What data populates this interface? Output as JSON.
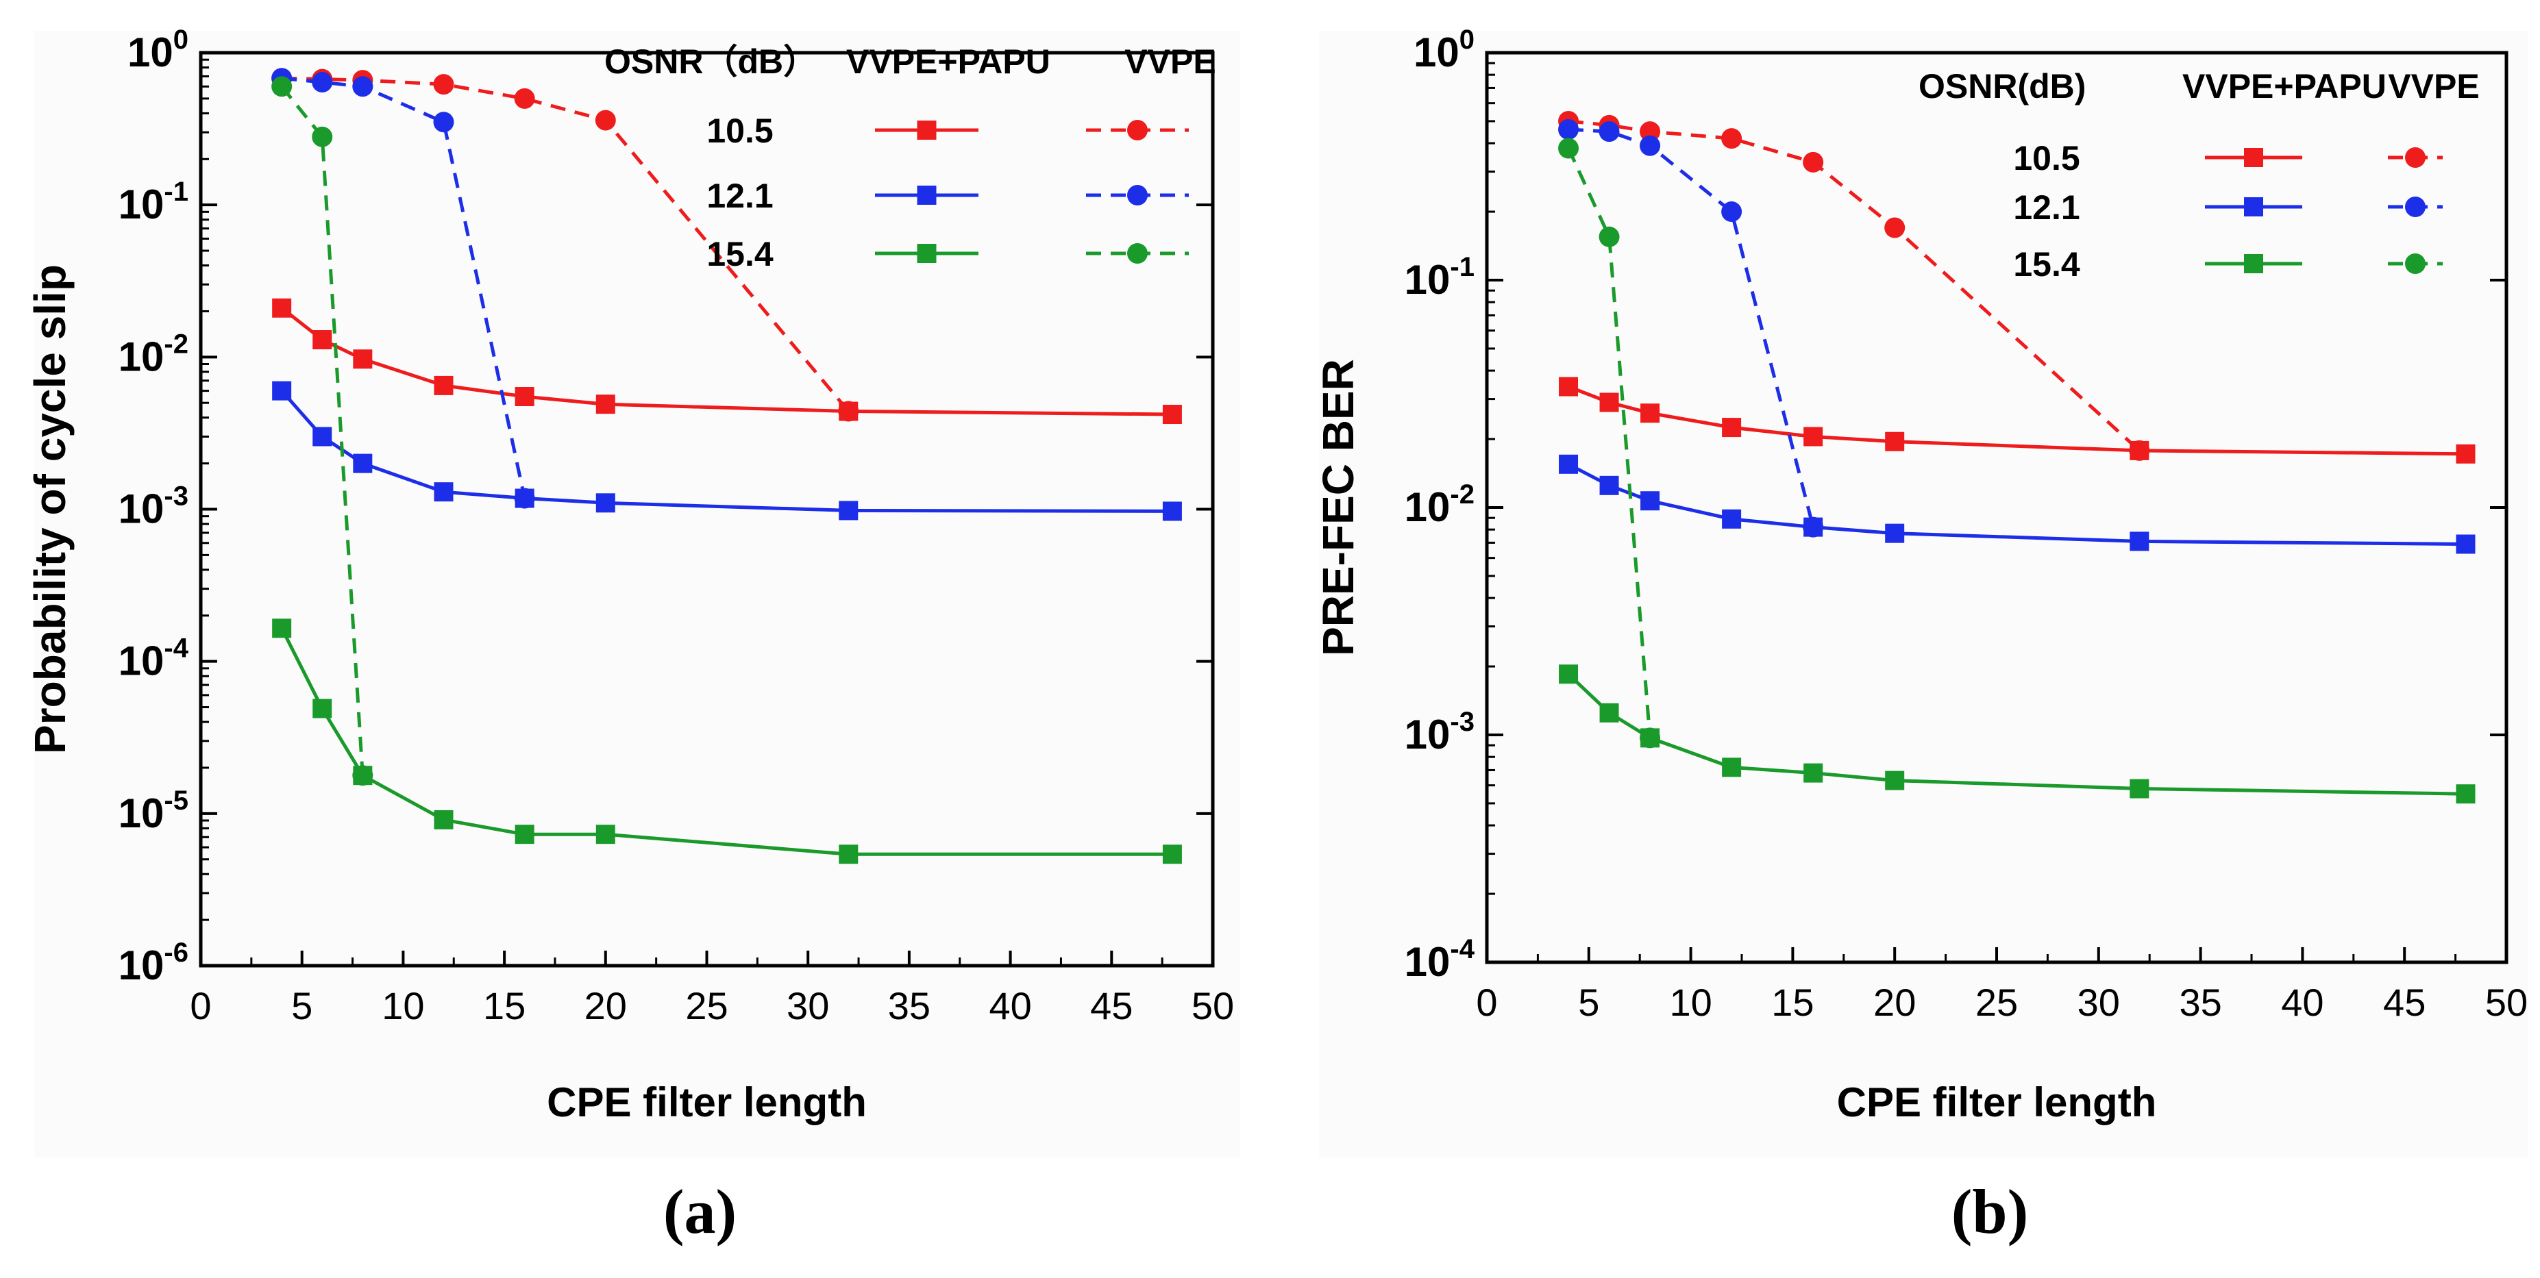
{
  "colors": {
    "red": "#ee1c1c",
    "blue": "#1c2ee8",
    "green": "#1a9a2a",
    "axis": "#000000",
    "panel_bg": "#fbfbfb"
  },
  "chart_data": [
    {
      "type": "line",
      "panel_label": "(a)",
      "title": "",
      "xlabel": "CPE filter length",
      "ylabel": "Probability of cycle slip",
      "xlim": [
        0,
        50
      ],
      "ylim_log10": [
        -6,
        0
      ],
      "xticks": [
        "0",
        "5",
        "10",
        "15",
        "20",
        "25",
        "30",
        "35",
        "40",
        "45",
        "50"
      ],
      "yticks": [
        {
          "base": "10",
          "exp": "0"
        },
        {
          "base": "10",
          "exp": "-1"
        },
        {
          "base": "10",
          "exp": "-2"
        },
        {
          "base": "10",
          "exp": "-3"
        },
        {
          "base": "10",
          "exp": "-4"
        },
        {
          "base": "10",
          "exp": "-5"
        },
        {
          "base": "10",
          "exp": "-6"
        }
      ],
      "legend": {
        "header_osnr": "OSNR（dB）",
        "header_series_a": "VVPE+PAPU",
        "header_series_b": "VVPE",
        "rows": [
          "10.5",
          "12.1",
          "15.4"
        ]
      },
      "series": [
        {
          "name": "10.5 VVPE+PAPU",
          "color": "red",
          "dash": false,
          "marker": "square",
          "x": [
            4,
            6,
            8,
            12,
            16,
            20,
            32,
            48
          ],
          "y": [
            0.021,
            0.013,
            0.0097,
            0.0065,
            0.0055,
            0.0049,
            0.0044,
            0.0042
          ]
        },
        {
          "name": "12.1 VVPE+PAPU",
          "color": "blue",
          "dash": false,
          "marker": "square",
          "x": [
            4,
            6,
            8,
            12,
            16,
            20,
            32,
            48
          ],
          "y": [
            0.006,
            0.003,
            0.002,
            0.0013,
            0.00118,
            0.0011,
            0.00098,
            0.00097
          ]
        },
        {
          "name": "15.4 VVPE+PAPU",
          "color": "green",
          "dash": false,
          "marker": "square",
          "x": [
            4,
            6,
            8,
            12,
            16,
            20,
            32,
            48
          ],
          "y": [
            0.000165,
            4.9e-05,
            1.78e-05,
            9.1e-06,
            7.3e-06,
            7.3e-06,
            5.4e-06,
            5.4e-06
          ]
        },
        {
          "name": "10.5 VVPE",
          "color": "red",
          "dash": true,
          "marker": "circle",
          "x": [
            4,
            6,
            8,
            12,
            16,
            20,
            32
          ],
          "y": [
            0.68,
            0.67,
            0.66,
            0.62,
            0.5,
            0.36,
            0.0044
          ]
        },
        {
          "name": "12.1 VVPE",
          "color": "blue",
          "dash": true,
          "marker": "circle",
          "x": [
            4,
            6,
            8,
            12,
            16
          ],
          "y": [
            0.68,
            0.64,
            0.6,
            0.35,
            0.00118
          ]
        },
        {
          "name": "15.4 VVPE",
          "color": "green",
          "dash": true,
          "marker": "circle",
          "x": [
            4,
            6,
            8
          ],
          "y": [
            0.6,
            0.28,
            1.78e-05
          ]
        }
      ]
    },
    {
      "type": "line",
      "panel_label": "(b)",
      "title": "",
      "xlabel": "CPE filter length",
      "ylabel": "PRE-FEC BER",
      "xlim": [
        0,
        50
      ],
      "ylim_log10": [
        -4,
        0
      ],
      "xticks": [
        "0",
        "5",
        "10",
        "15",
        "20",
        "25",
        "30",
        "35",
        "40",
        "45",
        "50"
      ],
      "yticks": [
        {
          "base": "10",
          "exp": "0"
        },
        {
          "base": "10",
          "exp": "-1"
        },
        {
          "base": "10",
          "exp": "-2"
        },
        {
          "base": "10",
          "exp": "-3"
        },
        {
          "base": "10",
          "exp": "-4"
        }
      ],
      "legend": {
        "header_osnr": "OSNR(dB)",
        "header_series_a": "VVPE+PAPU",
        "header_series_b": "VVPE",
        "rows": [
          "10.5",
          "12.1",
          "15.4"
        ]
      },
      "series": [
        {
          "name": "10.5 VVPE+PAPU",
          "color": "red",
          "dash": false,
          "marker": "square",
          "x": [
            4,
            6,
            8,
            12,
            16,
            20,
            32,
            48
          ],
          "y": [
            0.034,
            0.029,
            0.026,
            0.0225,
            0.0205,
            0.0195,
            0.0178,
            0.0172
          ]
        },
        {
          "name": "12.1 VVPE+PAPU",
          "color": "blue",
          "dash": false,
          "marker": "square",
          "x": [
            4,
            6,
            8,
            12,
            16,
            20,
            32,
            48
          ],
          "y": [
            0.0155,
            0.0125,
            0.0107,
            0.0089,
            0.0082,
            0.0077,
            0.0071,
            0.0069
          ]
        },
        {
          "name": "15.4 VVPE+PAPU",
          "color": "green",
          "dash": false,
          "marker": "square",
          "x": [
            4,
            6,
            8,
            12,
            16,
            20,
            32,
            48
          ],
          "y": [
            0.00185,
            0.00125,
            0.00097,
            0.00072,
            0.00068,
            0.00063,
            0.00058,
            0.00055
          ]
        },
        {
          "name": "10.5 VVPE",
          "color": "red",
          "dash": true,
          "marker": "circle",
          "x": [
            4,
            6,
            8,
            12,
            16,
            20,
            32
          ],
          "y": [
            0.5,
            0.48,
            0.45,
            0.42,
            0.33,
            0.17,
            0.0178
          ]
        },
        {
          "name": "12.1 VVPE",
          "color": "blue",
          "dash": true,
          "marker": "circle",
          "x": [
            4,
            6,
            8,
            12,
            16
          ],
          "y": [
            0.46,
            0.45,
            0.39,
            0.2,
            0.0082
          ]
        },
        {
          "name": "15.4 VVPE",
          "color": "green",
          "dash": true,
          "marker": "circle",
          "x": [
            4,
            6,
            8
          ],
          "y": [
            0.38,
            0.155,
            0.00097
          ]
        }
      ]
    }
  ]
}
